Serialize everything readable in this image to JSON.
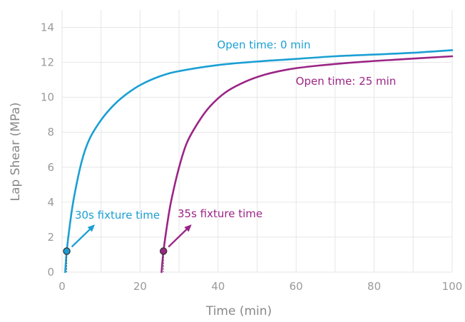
{
  "chart_data": {
    "type": "line",
    "title": "",
    "xlabel": "Time (min)",
    "ylabel": "Lap Shear (MPa)",
    "xlim": [
      0,
      100
    ],
    "ylim": [
      0,
      15
    ],
    "xticks": [
      0,
      20,
      40,
      60,
      80,
      100
    ],
    "yticks": [
      0,
      2,
      4,
      6,
      8,
      10,
      12,
      14
    ],
    "grid": true,
    "series": [
      {
        "name": "Open time: 0 min",
        "color": "#1a9fd4",
        "x": [
          0.8,
          1.2,
          2,
          3,
          5,
          7,
          10,
          13,
          16,
          20,
          25,
          30,
          40,
          50,
          60,
          70,
          80,
          90,
          100
        ],
        "y": [
          0,
          1.2,
          2.7,
          4.2,
          6.3,
          7.6,
          8.7,
          9.5,
          10.1,
          10.7,
          11.2,
          11.5,
          11.85,
          12.05,
          12.2,
          12.35,
          12.45,
          12.55,
          12.7
        ]
      },
      {
        "name": "Open time: 25 min",
        "color": "#9b2585",
        "x": [
          25.5,
          26,
          27,
          28,
          30,
          32,
          35,
          38,
          42,
          47,
          52,
          58,
          65,
          75,
          85,
          100
        ],
        "y": [
          0,
          1.2,
          2.8,
          4.1,
          6.0,
          7.4,
          8.6,
          9.5,
          10.3,
          10.9,
          11.3,
          11.6,
          11.8,
          12.0,
          12.15,
          12.35
        ]
      }
    ],
    "markers": [
      {
        "series": 0,
        "x": 1.2,
        "y": 1.2
      },
      {
        "series": 1,
        "x": 26,
        "y": 1.2
      }
    ],
    "annotations": [
      {
        "series": 0,
        "text": "Open time: 0 min"
      },
      {
        "series": 1,
        "text": "Open time: 25 min"
      },
      {
        "series": 0,
        "text": "30s fixture time"
      },
      {
        "series": 1,
        "text": "35s fixture time"
      }
    ]
  }
}
